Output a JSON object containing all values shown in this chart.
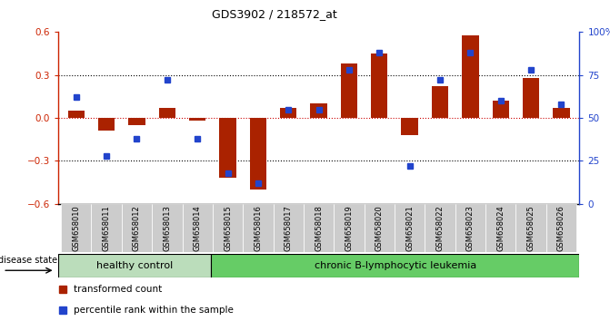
{
  "title": "GDS3902 / 218572_at",
  "samples": [
    "GSM658010",
    "GSM658011",
    "GSM658012",
    "GSM658013",
    "GSM658014",
    "GSM658015",
    "GSM658016",
    "GSM658017",
    "GSM658018",
    "GSM658019",
    "GSM658020",
    "GSM658021",
    "GSM658022",
    "GSM658023",
    "GSM658024",
    "GSM658025",
    "GSM658026"
  ],
  "red_bars": [
    0.05,
    -0.09,
    -0.05,
    0.07,
    -0.02,
    -0.42,
    -0.5,
    0.07,
    0.1,
    0.38,
    0.45,
    -0.12,
    0.22,
    0.58,
    0.12,
    0.28,
    0.07
  ],
  "blue_squares": [
    62,
    28,
    38,
    72,
    38,
    18,
    12,
    55,
    55,
    78,
    88,
    22,
    72,
    88,
    60,
    78,
    58
  ],
  "ylim_left": [
    -0.6,
    0.6
  ],
  "ylim_right": [
    0,
    100
  ],
  "yticks_left": [
    -0.6,
    -0.3,
    0.0,
    0.3,
    0.6
  ],
  "yticks_right": [
    0,
    25,
    50,
    75,
    100
  ],
  "ytick_labels_right": [
    "0",
    "25",
    "50",
    "75",
    "100%"
  ],
  "group1_label": "healthy control",
  "group2_label": "chronic B-lymphocytic leukemia",
  "group1_count": 5,
  "group2_count": 12,
  "disease_state_label": "disease state",
  "legend_red": "transformed count",
  "legend_blue": "percentile rank within the sample",
  "bar_color": "#aa2200",
  "dot_color": "#2244cc",
  "group1_color": "#bbddbb",
  "group2_color": "#66cc66",
  "bg_color": "#ffffff",
  "label_bg_color": "#cccccc",
  "bar_width": 0.55
}
